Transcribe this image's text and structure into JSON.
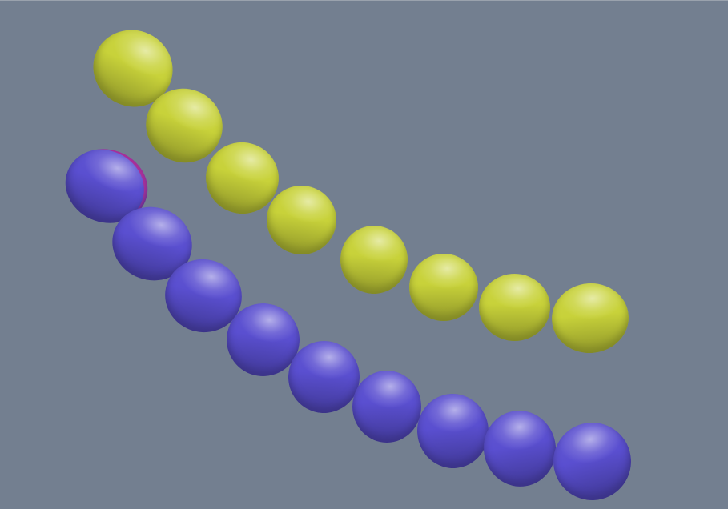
{
  "scene": {
    "background_color": "#737f90",
    "chains": [
      {
        "name": "yellow-chain",
        "color": "#c8d23a",
        "sphere_count": 8
      },
      {
        "name": "blue-chain",
        "color": "#5a4fd0",
        "sphere_count": 9,
        "first_sphere_rim_color": "#b0309a"
      }
    ]
  }
}
